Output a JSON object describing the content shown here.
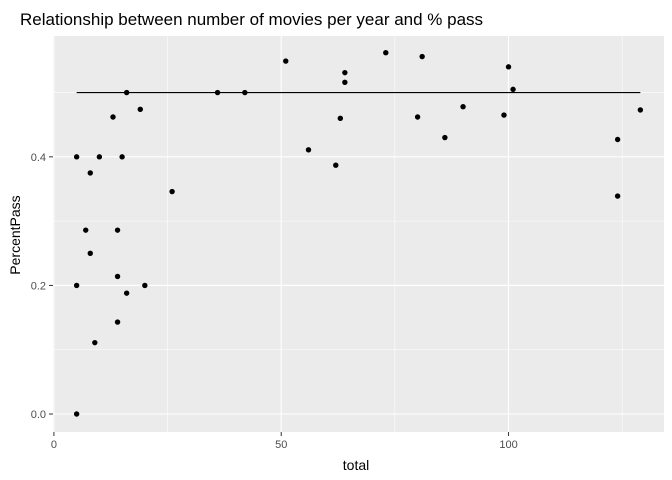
{
  "chart_data": {
    "type": "scatter",
    "title": "Relationship between number of movies per year and % pass",
    "xlabel": "total",
    "ylabel": "PercentPass",
    "xlim": [
      -0.2,
      134.2
    ],
    "ylim": [
      -0.028,
      0.588
    ],
    "x_ticks": [
      0,
      50,
      100
    ],
    "x_tick_labels": [
      "0",
      "50",
      "100"
    ],
    "y_ticks": [
      0.0,
      0.2,
      0.4
    ],
    "y_tick_labels": [
      "0.0",
      "0.2",
      "0.4"
    ],
    "x_minor": [
      25,
      75,
      125
    ],
    "y_minor": [
      0.1,
      0.3,
      0.5
    ],
    "grid": true,
    "background": "#ebebeb",
    "point_color": "#000000",
    "reference_line": {
      "x": [
        5,
        129
      ],
      "y": 0.5,
      "color": "#000000"
    },
    "points": [
      {
        "x": 5,
        "y": 0.0
      },
      {
        "x": 5,
        "y": 0.2
      },
      {
        "x": 5,
        "y": 0.4
      },
      {
        "x": 7,
        "y": 0.286
      },
      {
        "x": 8,
        "y": 0.375
      },
      {
        "x": 8,
        "y": 0.25
      },
      {
        "x": 9,
        "y": 0.111
      },
      {
        "x": 10,
        "y": 0.4
      },
      {
        "x": 13,
        "y": 0.462
      },
      {
        "x": 14,
        "y": 0.286
      },
      {
        "x": 14,
        "y": 0.214
      },
      {
        "x": 14,
        "y": 0.143
      },
      {
        "x": 15,
        "y": 0.4
      },
      {
        "x": 16,
        "y": 0.5
      },
      {
        "x": 16,
        "y": 0.188
      },
      {
        "x": 19,
        "y": 0.474
      },
      {
        "x": 20,
        "y": 0.2
      },
      {
        "x": 26,
        "y": 0.346
      },
      {
        "x": 36,
        "y": 0.5
      },
      {
        "x": 42,
        "y": 0.5
      },
      {
        "x": 51,
        "y": 0.549
      },
      {
        "x": 56,
        "y": 0.411
      },
      {
        "x": 62,
        "y": 0.387
      },
      {
        "x": 63,
        "y": 0.46
      },
      {
        "x": 64,
        "y": 0.531
      },
      {
        "x": 64,
        "y": 0.516
      },
      {
        "x": 73,
        "y": 0.562
      },
      {
        "x": 80,
        "y": 0.462
      },
      {
        "x": 81,
        "y": 0.556
      },
      {
        "x": 86,
        "y": 0.43
      },
      {
        "x": 90,
        "y": 0.478
      },
      {
        "x": 99,
        "y": 0.465
      },
      {
        "x": 100,
        "y": 0.54
      },
      {
        "x": 101,
        "y": 0.505
      },
      {
        "x": 124,
        "y": 0.427
      },
      {
        "x": 124,
        "y": 0.339
      },
      {
        "x": 129,
        "y": 0.473
      }
    ]
  }
}
